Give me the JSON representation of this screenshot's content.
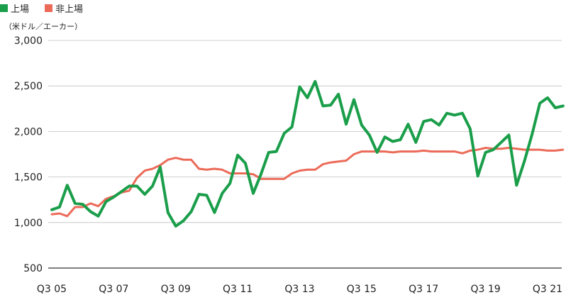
{
  "chart_data": {
    "type": "line",
    "ylabel": "（米ドル／エーカー）",
    "ylim": [
      500,
      3000
    ],
    "yticks": [
      500,
      1000,
      1500,
      2000,
      2500,
      3000
    ],
    "ytick_labels": [
      "500",
      "1,000",
      "1,500",
      "2,000",
      "2,500",
      "3,000"
    ],
    "x_start_index": 0,
    "x_end_index": 64,
    "xtick_positions": [
      0,
      8,
      16,
      24,
      32,
      40,
      48,
      56,
      64
    ],
    "xtick_labels": [
      "Q3 05",
      "Q3 07",
      "Q3 09",
      "Q3 11",
      "Q3 13",
      "Q3 15",
      "Q3 17",
      "Q3 19",
      "Q3 21"
    ],
    "grid": "horizontal",
    "legend_position": "top-left",
    "series": [
      {
        "name": "上場",
        "color": "#1a9e4a",
        "values": [
          1140,
          1170,
          1410,
          1210,
          1200,
          1120,
          1070,
          1230,
          1280,
          1340,
          1400,
          1400,
          1310,
          1400,
          1610,
          1110,
          960,
          1020,
          1120,
          1310,
          1300,
          1110,
          1320,
          1430,
          1740,
          1650,
          1320,
          1530,
          1770,
          1780,
          1980,
          2050,
          2490,
          2370,
          2550,
          2280,
          2290,
          2410,
          2080,
          2350,
          2070,
          1960,
          1770,
          1940,
          1890,
          1910,
          2080,
          1880,
          2110,
          2130,
          2070,
          2200,
          2180,
          2200,
          2030,
          1510,
          1770,
          1800,
          1880,
          1960,
          1410,
          1670,
          1970,
          2310,
          2370,
          2260,
          2280
        ]
      },
      {
        "name": "非上場",
        "color": "#ec6a58",
        "values": [
          1090,
          1100,
          1070,
          1170,
          1170,
          1210,
          1180,
          1260,
          1290,
          1330,
          1350,
          1490,
          1570,
          1590,
          1630,
          1690,
          1710,
          1690,
          1690,
          1590,
          1580,
          1590,
          1580,
          1540,
          1540,
          1540,
          1530,
          1480,
          1480,
          1480,
          1480,
          1540,
          1570,
          1580,
          1580,
          1640,
          1660,
          1670,
          1680,
          1750,
          1780,
          1780,
          1780,
          1780,
          1770,
          1780,
          1780,
          1780,
          1790,
          1780,
          1780,
          1780,
          1780,
          1760,
          1790,
          1800,
          1820,
          1810,
          1810,
          1820,
          1810,
          1800,
          1800,
          1800,
          1790,
          1790,
          1800
        ]
      }
    ]
  }
}
